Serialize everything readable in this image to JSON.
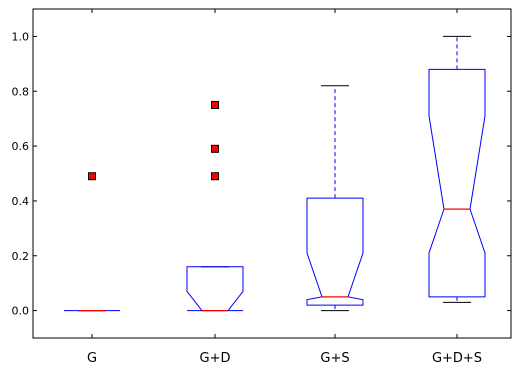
{
  "chart_data": {
    "type": "box",
    "title": "",
    "xlabel": "",
    "ylabel": "",
    "ylim": [
      -0.1,
      1.1
    ],
    "yticks": [
      0.0,
      0.2,
      0.4,
      0.6,
      0.8,
      1.0
    ],
    "ytick_labels": [
      "0.0",
      "0.2",
      "0.4",
      "0.6",
      "0.8",
      "1.0"
    ],
    "notched": true,
    "categories": [
      "G",
      "G+D",
      "G+S",
      "G+D+S"
    ],
    "boxes": [
      {
        "label": "G",
        "whisker_low": 0.0,
        "q1": 0.0,
        "median": 0.0,
        "q3": 0.0,
        "whisker_high": 0.0,
        "notch_low": 0.0,
        "notch_high": 0.0,
        "outliers": [
          0.49
        ]
      },
      {
        "label": "G+D",
        "whisker_low": 0.0,
        "q1": 0.0,
        "median": 0.0,
        "q3": 0.16,
        "whisker_high": 0.16,
        "notch_low": 0.0,
        "notch_high": 0.07,
        "outliers": [
          0.49,
          0.59,
          0.75
        ]
      },
      {
        "label": "G+S",
        "whisker_low": 0.0,
        "q1": 0.02,
        "median": 0.05,
        "q3": 0.41,
        "whisker_high": 0.82,
        "notch_low": 0.04,
        "notch_high": 0.21,
        "outliers": []
      },
      {
        "label": "G+D+S",
        "whisker_low": 0.03,
        "q1": 0.05,
        "median": 0.37,
        "q3": 0.88,
        "whisker_high": 1.0,
        "notch_low": 0.21,
        "notch_high": 0.71,
        "outliers": []
      }
    ],
    "colors": {
      "box": "#0000ff",
      "median": "#ff0000",
      "whisker_cap": "#000000",
      "outlier_fill": "#ff0000",
      "outlier_edge": "#000000"
    },
    "grid": false,
    "legend": "none"
  }
}
